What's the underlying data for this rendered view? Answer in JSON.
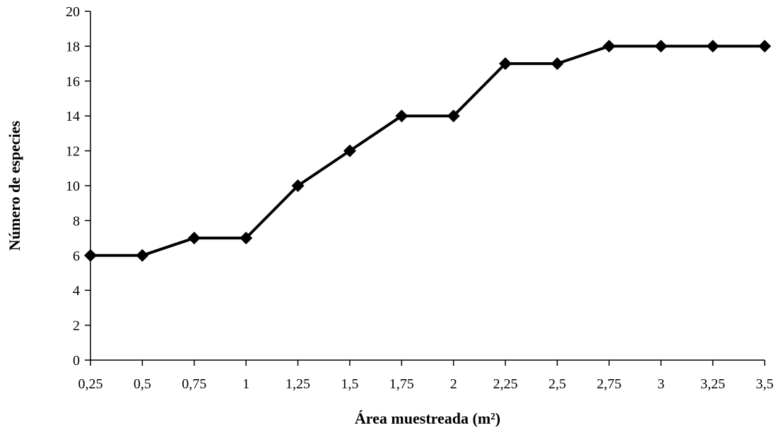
{
  "chart_data": {
    "type": "line",
    "title": "",
    "xlabel": "Área muestreada (m²)",
    "ylabel": "Número de especies",
    "categories": [
      "0,25",
      "0,5",
      "0,75",
      "1",
      "1,25",
      "1,5",
      "1,75",
      "2",
      "2,25",
      "2,5",
      "2,75",
      "3",
      "3,25",
      "3,5"
    ],
    "x": [
      0.25,
      0.5,
      0.75,
      1,
      1.25,
      1.5,
      1.75,
      2,
      2.25,
      2.5,
      2.75,
      3,
      3.25,
      3.5
    ],
    "series": [
      {
        "values": [
          6,
          6,
          7,
          7,
          10,
          12,
          14,
          14,
          17,
          17,
          18,
          18,
          18,
          18
        ],
        "color": "#000000",
        "marker": "diamond"
      }
    ],
    "ylim": [
      0,
      20
    ],
    "yticks": [
      "0",
      "2",
      "4",
      "6",
      "8",
      "10",
      "12",
      "14",
      "16",
      "18",
      "20"
    ],
    "grid": false,
    "legend": "none"
  }
}
